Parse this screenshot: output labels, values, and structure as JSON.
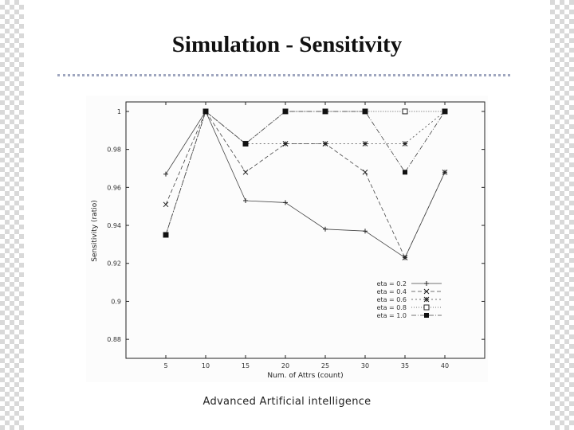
{
  "title": "Simulation - Sensitivity",
  "footer": "Advanced Artificial intelligence",
  "chart_data": {
    "type": "line",
    "xlabel": "Num. of Attrs (count)",
    "ylabel": "Sensitivity (ratio)",
    "categories": [
      5,
      10,
      15,
      20,
      25,
      30,
      35,
      40
    ],
    "ylim": [
      0.87,
      1.005
    ],
    "yticks": [
      {
        "value": 1.0,
        "label": "1"
      },
      {
        "value": 0.98,
        "label": "0.98"
      },
      {
        "value": 0.96,
        "label": "0.96"
      },
      {
        "value": 0.94,
        "label": "0.94"
      },
      {
        "value": 0.92,
        "label": "0.92"
      },
      {
        "value": 0.9,
        "label": "0.9"
      },
      {
        "value": 0.88,
        "label": "0.88"
      }
    ],
    "grid": false,
    "legend_position": "bottom-right",
    "series": [
      {
        "name": "eta = 0.2",
        "marker": "plus",
        "dash": "",
        "values": [
          0.967,
          1.0,
          0.953,
          0.952,
          0.938,
          0.937,
          0.923,
          0.968
        ]
      },
      {
        "name": "eta = 0.4",
        "marker": "x",
        "dash": "5,3",
        "values": [
          0.951,
          1.0,
          0.968,
          0.983,
          0.983,
          0.968,
          0.923,
          0.968
        ]
      },
      {
        "name": "eta = 0.6",
        "marker": "star",
        "dash": "2,3",
        "values": [
          0.935,
          1.0,
          0.983,
          0.983,
          0.983,
          0.983,
          0.983,
          1.0
        ]
      },
      {
        "name": "eta = 0.8",
        "marker": "square-open",
        "dash": "1,2",
        "values": [
          0.935,
          1.0,
          0.983,
          1.0,
          1.0,
          1.0,
          1.0,
          1.0
        ]
      },
      {
        "name": "eta = 1.0",
        "marker": "square-filled",
        "dash": "6,2,1,2",
        "values": [
          0.935,
          1.0,
          0.983,
          1.0,
          1.0,
          1.0,
          0.968,
          1.0
        ]
      }
    ]
  }
}
